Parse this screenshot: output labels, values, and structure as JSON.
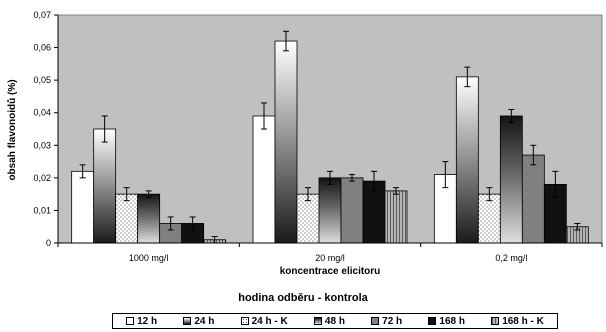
{
  "chart_data": {
    "type": "bar",
    "ylabel": "obsah flavonoidů (%)",
    "xlabel": "koncentrace elicitoru",
    "legend_title": "hodina odběru - kontrola",
    "legend_position": "bottom",
    "grid": false,
    "ylim": [
      0,
      0.07
    ],
    "yticks": [
      "0",
      "0,01",
      "0,02",
      "0,03",
      "0,04",
      "0,05",
      "0,06",
      "0,07"
    ],
    "categories": [
      "1000 mg/l",
      "20 mg/l",
      "0,2 mg/l"
    ],
    "series": [
      {
        "name": "12 h",
        "values": [
          0.022,
          0.039,
          0.021
        ],
        "errors": [
          0.002,
          0.004,
          0.004
        ],
        "fill": "grad-white",
        "color": "#ffffff"
      },
      {
        "name": "24 h",
        "values": [
          0.035,
          0.062,
          0.051
        ],
        "errors": [
          0.004,
          0.003,
          0.003
        ],
        "fill": "grad-dark",
        "color": "#222222"
      },
      {
        "name": "24 h - K",
        "values": [
          0.015,
          0.015,
          0.015
        ],
        "errors": [
          0.002,
          0.002,
          0.002
        ],
        "fill": "dots",
        "color": "#ffffff"
      },
      {
        "name": "48 h",
        "values": [
          0.015,
          0.02,
          0.039
        ],
        "errors": [
          0.001,
          0.002,
          0.002
        ],
        "fill": "grad-mid",
        "color": "#888888"
      },
      {
        "name": "72 h",
        "values": [
          0.006,
          0.02,
          0.027
        ],
        "errors": [
          0.002,
          0.001,
          0.003
        ],
        "fill": "gray",
        "color": "#808080"
      },
      {
        "name": "168 h",
        "values": [
          0.006,
          0.019,
          0.018
        ],
        "errors": [
          0.002,
          0.003,
          0.004
        ],
        "fill": "black",
        "color": "#111111"
      },
      {
        "name": "168 h - K",
        "values": [
          0.001,
          0.016,
          0.005
        ],
        "errors": [
          0.001,
          0.001,
          0.001
        ],
        "fill": "stripes",
        "color": "#9a9a9a"
      }
    ]
  }
}
